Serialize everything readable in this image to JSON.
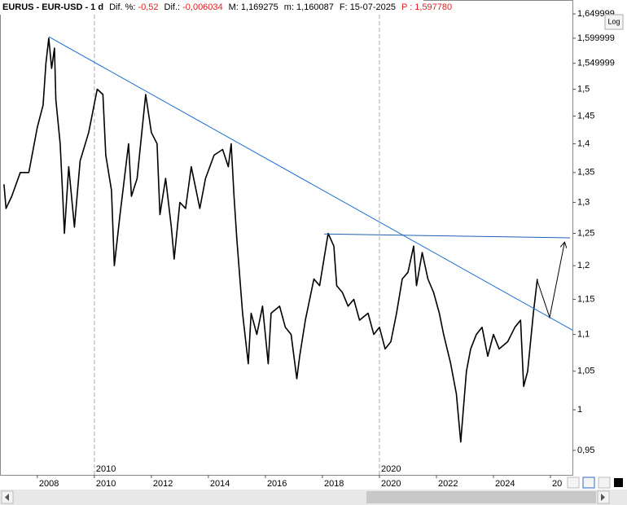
{
  "header": {
    "symbol": "EURUS - EUR-USD - 1 d",
    "fields": [
      {
        "label": "Dif. %:",
        "value": "-0,52",
        "color": "#e02020"
      },
      {
        "label": "Dif.:",
        "value": "-0,006034",
        "color": "#e02020"
      },
      {
        "label": "M:",
        "value": "1,169275",
        "color": "#000000"
      },
      {
        "label": "m:",
        "value": "1,160087",
        "color": "#000000"
      },
      {
        "label": "F:",
        "value": "15-07-2025",
        "color": "#000000"
      },
      {
        "label": "P :",
        "value": "1,597780",
        "color": "#e02020",
        "label_color": "#e02020"
      }
    ],
    "log_button": "Log"
  },
  "chart_data": {
    "type": "line",
    "color": "#000000",
    "log_scale": true,
    "x": [
      2006.83,
      2006.9,
      2007.1,
      2007.4,
      2007.7,
      2008.0,
      2008.2,
      2008.3,
      2008.4,
      2008.5,
      2008.6,
      2008.65,
      2008.8,
      2008.9,
      2008.95,
      2009.1,
      2009.3,
      2009.5,
      2009.8,
      2010.1,
      2010.3,
      2010.4,
      2010.6,
      2010.7,
      2010.9,
      2011.2,
      2011.3,
      2011.5,
      2011.8,
      2012.0,
      2012.2,
      2012.3,
      2012.5,
      2012.7,
      2012.8,
      2013.0,
      2013.2,
      2013.4,
      2013.7,
      2013.9,
      2014.2,
      2014.5,
      2014.7,
      2014.8,
      2014.9,
      2015.0,
      2015.2,
      2015.4,
      2015.5,
      2015.7,
      2015.9,
      2016.1,
      2016.2,
      2016.5,
      2016.7,
      2016.9,
      2017.1,
      2017.2,
      2017.4,
      2017.7,
      2017.9,
      2018.2,
      2018.4,
      2018.5,
      2018.7,
      2018.9,
      2019.1,
      2019.3,
      2019.6,
      2019.8,
      2020.0,
      2020.2,
      2020.4,
      2020.6,
      2020.8,
      2021.0,
      2021.2,
      2021.3,
      2021.5,
      2021.7,
      2021.9,
      2022.1,
      2022.25,
      2022.5,
      2022.7,
      2022.85,
      2023.05,
      2023.2,
      2023.4,
      2023.6,
      2023.8,
      2024.0,
      2024.2,
      2024.5,
      2024.75,
      2024.95,
      2025.06,
      2025.2,
      2025.4,
      2025.54
    ],
    "values": [
      1.33,
      1.29,
      1.31,
      1.35,
      1.35,
      1.43,
      1.47,
      1.55,
      1.6,
      1.54,
      1.58,
      1.48,
      1.4,
      1.3,
      1.25,
      1.36,
      1.26,
      1.37,
      1.42,
      1.5,
      1.49,
      1.38,
      1.32,
      1.2,
      1.28,
      1.4,
      1.31,
      1.34,
      1.49,
      1.42,
      1.4,
      1.28,
      1.34,
      1.26,
      1.21,
      1.3,
      1.29,
      1.36,
      1.29,
      1.34,
      1.38,
      1.39,
      1.36,
      1.4,
      1.31,
      1.24,
      1.13,
      1.06,
      1.13,
      1.1,
      1.14,
      1.06,
      1.13,
      1.14,
      1.11,
      1.1,
      1.04,
      1.07,
      1.12,
      1.18,
      1.17,
      1.25,
      1.23,
      1.17,
      1.16,
      1.14,
      1.15,
      1.12,
      1.13,
      1.1,
      1.11,
      1.08,
      1.09,
      1.13,
      1.18,
      1.19,
      1.23,
      1.17,
      1.22,
      1.18,
      1.16,
      1.13,
      1.1,
      1.06,
      1.02,
      0.96,
      1.05,
      1.08,
      1.1,
      1.11,
      1.07,
      1.1,
      1.08,
      1.09,
      1.11,
      1.12,
      1.03,
      1.05,
      1.13,
      1.18
    ],
    "xlim": [
      2006.69,
      2026.77
    ],
    "ylim": [
      0.921,
      1.662
    ],
    "xticks": [
      2008,
      2010,
      2012,
      2014,
      2016,
      2018,
      2020,
      2022,
      2024,
      {
        "value": 2026,
        "label": "20"
      }
    ],
    "period_lines": [
      2010,
      2020
    ],
    "yticks": [
      {
        "value": 0.95,
        "label": "0,95"
      },
      {
        "value": 1,
        "label": "1"
      },
      {
        "value": 1.05,
        "label": "1,05"
      },
      {
        "value": 1.1,
        "label": "1,1"
      },
      {
        "value": 1.15,
        "label": "1,15"
      },
      {
        "value": 1.2,
        "label": "1,2"
      },
      {
        "value": 1.25,
        "label": "1,25"
      },
      {
        "value": 1.3,
        "label": "1,3"
      },
      {
        "value": 1.35,
        "label": "1,35"
      },
      {
        "value": 1.4,
        "label": "1,4"
      },
      {
        "value": 1.45,
        "label": "1,45"
      },
      {
        "value": 1.5,
        "label": "1,5"
      },
      {
        "value": 1.549999,
        "label": "1,549999"
      },
      {
        "value": 1.599999,
        "label": "1,599999"
      },
      {
        "value": 1.649999,
        "label": "1,649999"
      }
    ],
    "drawings": [
      {
        "color": "#1f6fd0",
        "x": [
          2008.4,
          2026.77
        ],
        "y": [
          1.603,
          1.106
        ]
      },
      {
        "color": "#1f5fb0",
        "x": [
          2018.06,
          2026.69
        ],
        "y": [
          1.249,
          1.243
        ]
      },
      {
        "color": "#000000",
        "arrow": true,
        "x": [
          2025.54,
          2025.97,
          2026.49
        ],
        "y": [
          1.177,
          1.124,
          1.235
        ]
      }
    ]
  }
}
